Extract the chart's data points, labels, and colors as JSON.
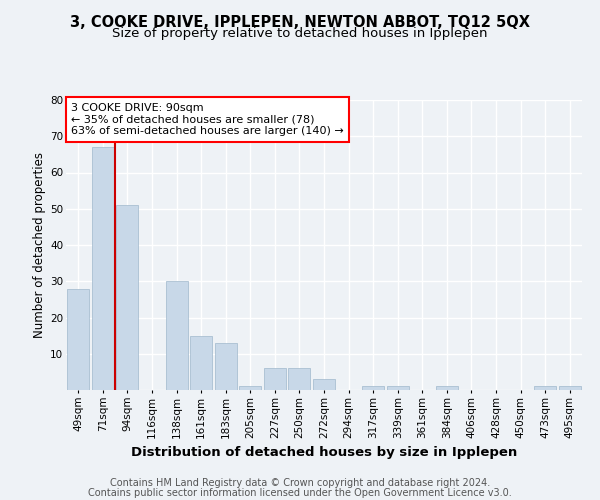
{
  "title1": "3, COOKE DRIVE, IPPLEPEN, NEWTON ABBOT, TQ12 5QX",
  "title2": "Size of property relative to detached houses in Ipplepen",
  "xlabel": "Distribution of detached houses by size in Ipplepen",
  "ylabel": "Number of detached properties",
  "categories": [
    "49sqm",
    "71sqm",
    "94sqm",
    "116sqm",
    "138sqm",
    "161sqm",
    "183sqm",
    "205sqm",
    "227sqm",
    "250sqm",
    "272sqm",
    "294sqm",
    "317sqm",
    "339sqm",
    "361sqm",
    "384sqm",
    "406sqm",
    "428sqm",
    "450sqm",
    "473sqm",
    "495sqm"
  ],
  "values": [
    28,
    67,
    51,
    0,
    30,
    15,
    13,
    1,
    6,
    6,
    3,
    0,
    1,
    1,
    0,
    1,
    0,
    0,
    0,
    1,
    1
  ],
  "bar_color": "#c8d8e8",
  "bar_edge_color": "#a0b8cc",
  "red_line_x": 1.5,
  "annotation_text": "3 COOKE DRIVE: 90sqm\n← 35% of detached houses are smaller (78)\n63% of semi-detached houses are larger (140) →",
  "annotation_box_color": "white",
  "annotation_box_edge_color": "red",
  "red_line_color": "#cc0000",
  "ylim": [
    0,
    80
  ],
  "yticks": [
    0,
    10,
    20,
    30,
    40,
    50,
    60,
    70,
    80
  ],
  "footer1": "Contains HM Land Registry data © Crown copyright and database right 2024.",
  "footer2": "Contains public sector information licensed under the Open Government Licence v3.0.",
  "bg_color": "#eef2f6",
  "plot_bg_color": "#eef2f6",
  "grid_color": "white",
  "title1_fontsize": 10.5,
  "title2_fontsize": 9.5,
  "xlabel_fontsize": 9.5,
  "ylabel_fontsize": 8.5,
  "tick_fontsize": 7.5,
  "footer_fontsize": 7.0,
  "annotation_fontsize": 8
}
